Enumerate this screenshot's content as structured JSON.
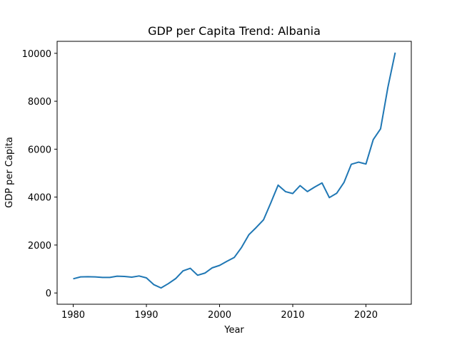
{
  "chart_data": {
    "type": "line",
    "title": "GDP per Capita Trend: Albania",
    "xlabel": "Year",
    "ylabel": "GDP per Capita",
    "xlim": [
      1977.8,
      2026.2
    ],
    "ylim": [
      -470,
      10500
    ],
    "xticks": [
      1980,
      1990,
      2000,
      2010,
      2020
    ],
    "yticks": [
      0,
      2000,
      4000,
      6000,
      8000,
      10000
    ],
    "grid": false,
    "line_color": "#1f77b4",
    "series": [
      {
        "x": [
          1980,
          1981,
          1982,
          1983,
          1984,
          1985,
          1986,
          1987,
          1988,
          1989,
          1990,
          1991,
          1992,
          1993,
          1994,
          1995,
          1996,
          1997,
          1998,
          1999,
          2000,
          2001,
          2002,
          2003,
          2004,
          2005,
          2006,
          2007,
          2008,
          2009,
          2010,
          2011,
          2012,
          2013,
          2014,
          2015,
          2016,
          2017,
          2018,
          2019,
          2020,
          2021,
          2022,
          2023,
          2024
        ],
        "values": [
          590,
          670,
          680,
          670,
          650,
          650,
          700,
          690,
          660,
          710,
          630,
          350,
          210,
          390,
          600,
          920,
          1030,
          740,
          830,
          1050,
          1150,
          1320,
          1480,
          1900,
          2430,
          2730,
          3050,
          3760,
          4500,
          4230,
          4150,
          4480,
          4230,
          4420,
          4590,
          3980,
          4160,
          4610,
          5370,
          5460,
          5380,
          6400,
          6850,
          8580,
          10030
        ]
      }
    ]
  }
}
